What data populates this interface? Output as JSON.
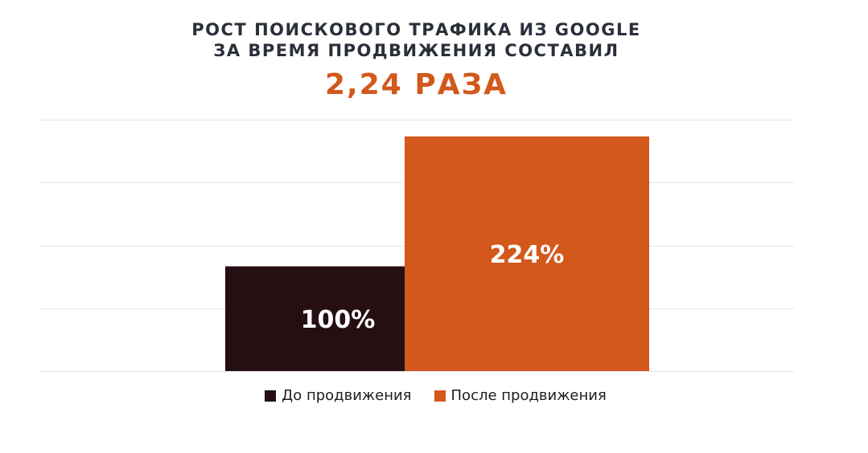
{
  "chart_data": {
    "type": "bar",
    "title_lines": [
      "РОСТ ПОИСКОВОГО ТРАФИКА ИЗ GOOGLE",
      "ЗА ВРЕМЯ ПРОДВИЖЕНИЯ СОСТАВИЛ"
    ],
    "headline": "2,24 РАЗА",
    "headline_color": "#d2581c",
    "categories": [
      "До продвижения",
      "После продвижения"
    ],
    "values": [
      100,
      224
    ],
    "data_labels": [
      "100%",
      "224%"
    ],
    "colors": [
      "#250f12",
      "#d2581c"
    ],
    "ylim": [
      0,
      240
    ],
    "grid": true,
    "legend": "bottom-center",
    "legend_entries": [
      "До продвижения",
      "После продвижения"
    ]
  }
}
